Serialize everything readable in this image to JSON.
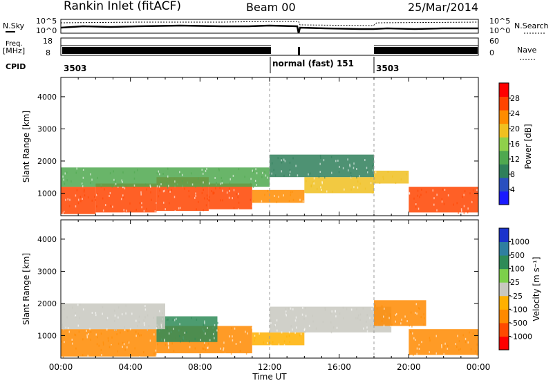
{
  "header": {
    "station": "Rankin Inlet (fitACF)",
    "beam": "Beam 00",
    "date": "25/Mar/2014"
  },
  "status_panels": {
    "nsky_label": "N.Sky",
    "nsearch_label": "N.Search",
    "nsky_ticks": [
      "10^5",
      "10^0"
    ],
    "nsearch_ticks": [
      "10^5",
      "10^0"
    ],
    "freq_label_1": "Freq.",
    "freq_label_2": "[MHz]",
    "freq_ticks": [
      "18",
      "8"
    ],
    "nave_label": "Nave",
    "nave_ticks": [
      "60",
      "0"
    ],
    "cpid_label": "CPID",
    "cpid_segments": [
      "3503",
      "normal (fast) 151",
      "3503"
    ]
  },
  "colors": {
    "power": [
      "#1a1aff",
      "#2a4fbf",
      "#2f7f5a",
      "#4fa84f",
      "#8fd04a",
      "#f0c020",
      "#ff8c00",
      "#ff4400",
      "#ff0000"
    ],
    "velocity_scale": [
      "#ff0000",
      "#ff4a00",
      "#ff8a00",
      "#ffb000",
      "#c8c8c0",
      "#7cd04a",
      "#2e8b57",
      "#2f7fa0",
      "#1a33cc"
    ]
  },
  "chart_data": [
    {
      "type": "heatmap",
      "panel": "power",
      "xlabel": "Time UT",
      "ylabel": "Slant Range [km]",
      "x_ticks": [
        "00:00",
        "04:00",
        "08:00",
        "12:00",
        "16:00",
        "20:00",
        "00:00"
      ],
      "y_ticks": [
        1000,
        2000,
        3000,
        4000
      ],
      "ylim": [
        300,
        4600
      ],
      "xlim_hours": [
        0,
        24
      ],
      "colorbar": {
        "label": "Power [dB]",
        "ticks": [
          4,
          8,
          12,
          16,
          20,
          24,
          28
        ],
        "range": [
          0,
          32
        ]
      },
      "bands": [
        {
          "t0": 0.0,
          "t1": 2.0,
          "r_lo": 350,
          "r_hi": 1200,
          "value": 26
        },
        {
          "t0": 2.0,
          "t1": 5.5,
          "r_lo": 400,
          "r_hi": 1300,
          "value": 27
        },
        {
          "t0": 5.5,
          "t1": 8.5,
          "r_lo": 450,
          "r_hi": 1500,
          "value": 25
        },
        {
          "t0": 8.5,
          "t1": 11.0,
          "r_lo": 500,
          "r_hi": 1300,
          "value": 26
        },
        {
          "t0": 11.0,
          "t1": 14.0,
          "r_lo": 700,
          "r_hi": 1100,
          "value": 24
        },
        {
          "t0": 14.0,
          "t1": 18.0,
          "r_lo": 1000,
          "r_hi": 1500,
          "value": 20
        },
        {
          "t0": 20.0,
          "t1": 24.0,
          "r_lo": 400,
          "r_hi": 1200,
          "value": 27
        },
        {
          "t0": 0.0,
          "t1": 12.0,
          "r_lo": 1200,
          "r_hi": 1800,
          "value": 14
        },
        {
          "t0": 12.0,
          "t1": 18.0,
          "r_lo": 1500,
          "r_hi": 2200,
          "value": 8
        },
        {
          "t0": 18.0,
          "t1": 20.0,
          "r_lo": 1300,
          "r_hi": 1700,
          "value": 18
        }
      ]
    },
    {
      "type": "heatmap",
      "panel": "velocity",
      "xlabel": "Time UT",
      "ylabel": "Slant Range [km]",
      "x_ticks": [
        "00:00",
        "04:00",
        "08:00",
        "12:00",
        "16:00",
        "20:00",
        "00:00"
      ],
      "y_ticks": [
        1000,
        2000,
        3000,
        4000
      ],
      "ylim": [
        300,
        4600
      ],
      "xlim_hours": [
        0,
        24
      ],
      "colorbar": {
        "label": "Velocity [m s⁻¹]",
        "ticks": [
          "1000",
          "500",
          "100",
          "25",
          "-25",
          "-100",
          "-500",
          "-1000"
        ]
      },
      "bands": [
        {
          "t0": 0.0,
          "t1": 5.5,
          "r_lo": 350,
          "r_hi": 1200,
          "value": -150
        },
        {
          "t0": 5.5,
          "t1": 11.0,
          "r_lo": 450,
          "r_hi": 1300,
          "value": -120
        },
        {
          "t0": 5.5,
          "t1": 9.0,
          "r_lo": 800,
          "r_hi": 1600,
          "value": 300
        },
        {
          "t0": 11.0,
          "t1": 14.0,
          "r_lo": 700,
          "r_hi": 1100,
          "value": -80
        },
        {
          "t0": 12.0,
          "t1": 19.0,
          "r_lo": 1100,
          "r_hi": 1900,
          "value": 0
        },
        {
          "t0": 0.0,
          "t1": 6.0,
          "r_lo": 1200,
          "r_hi": 2000,
          "value": 0
        },
        {
          "t0": 20.0,
          "t1": 24.0,
          "r_lo": 400,
          "r_hi": 1200,
          "value": -300
        },
        {
          "t0": 18.0,
          "t1": 21.0,
          "r_lo": 1300,
          "r_hi": 2100,
          "value": -200
        }
      ]
    }
  ]
}
